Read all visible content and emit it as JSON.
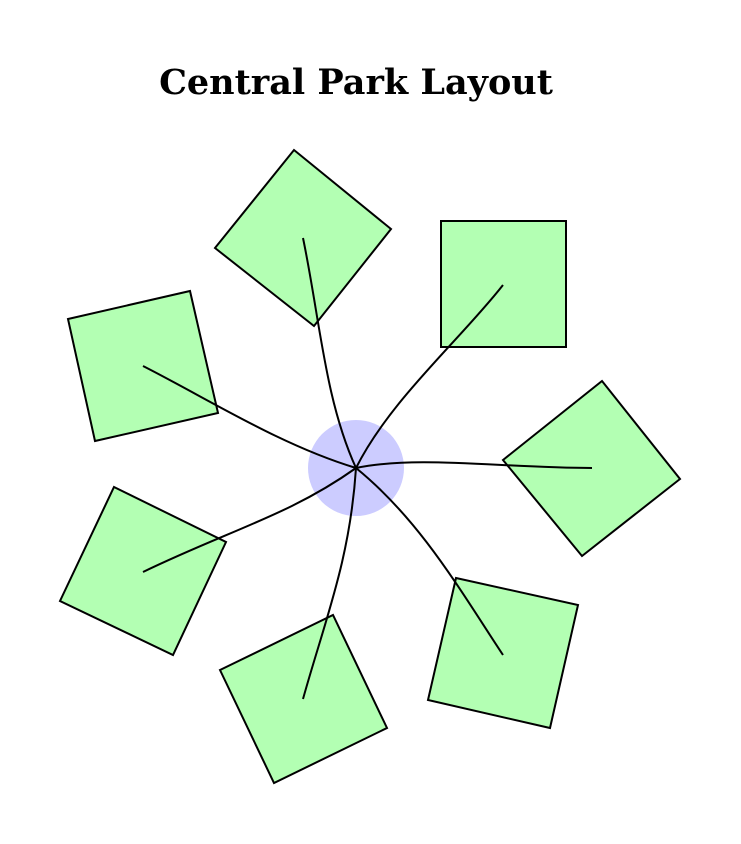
{
  "title": "Central Park Layout",
  "colors": {
    "hub_fill": "#ccccff",
    "block_fill": "#b3ffb3",
    "stroke": "#000000"
  },
  "hub": {
    "name": "central-hub"
  },
  "blocks": [
    {
      "name": "block-east"
    },
    {
      "name": "block-northeast"
    },
    {
      "name": "block-north"
    },
    {
      "name": "block-northwest"
    },
    {
      "name": "block-west"
    },
    {
      "name": "block-southwest"
    },
    {
      "name": "block-south"
    }
  ]
}
